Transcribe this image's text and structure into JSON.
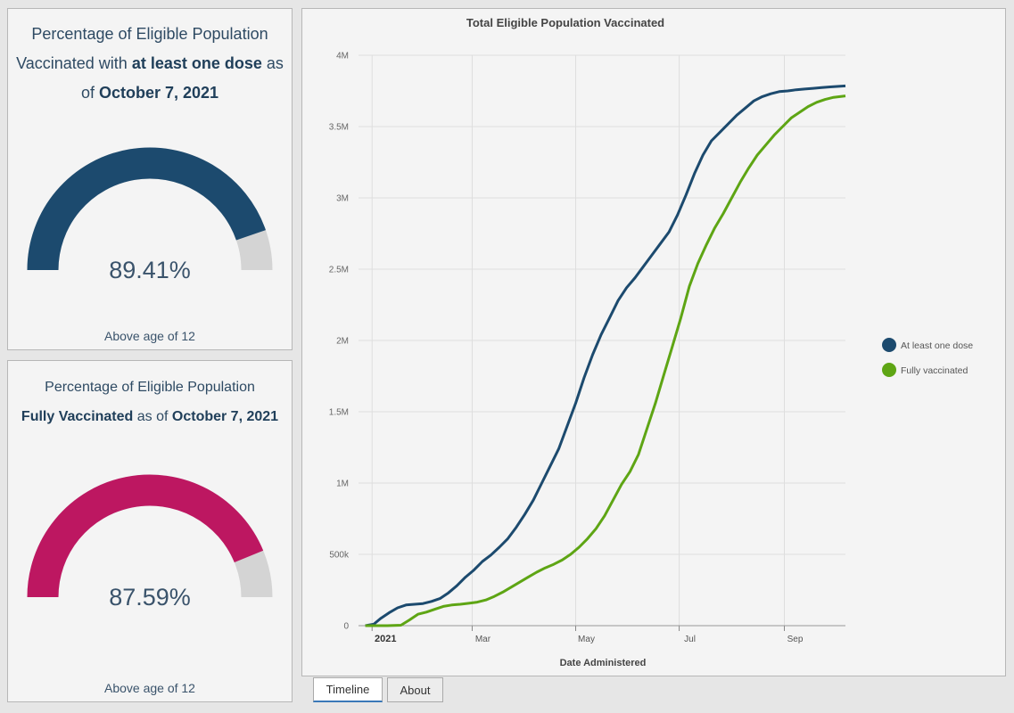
{
  "gauge1": {
    "title_part1": "Percentage of Eligible Population Vaccinated with ",
    "title_bold1": "at least one dose",
    "title_part2": " as of ",
    "title_bold2": "October 7, 2021",
    "value_text": "89.41%",
    "value": 89.41,
    "footer": "Above age of 12",
    "color": "#1c4a6e",
    "track_color": "#d4d4d4"
  },
  "gauge2": {
    "title_line1": "Percentage of Eligible Population",
    "title_bold1": "Fully Vaccinated",
    "title_part2": " as of ",
    "title_bold2": "October 7, 2021",
    "value_text": "87.59%",
    "value": 87.59,
    "footer": "Above age of 12",
    "color": "#bd1761",
    "track_color": "#d4d4d4"
  },
  "tabs": [
    {
      "label": "Timeline",
      "active": true
    },
    {
      "label": "About",
      "active": false
    }
  ],
  "chart_data": {
    "type": "line",
    "title": "Total Eligible Population Vaccinated",
    "xlabel": "Date Administered",
    "ylabel": "",
    "y_ticks": [
      {
        "value": 0,
        "label": "0"
      },
      {
        "value": 500000,
        "label": "500k"
      },
      {
        "value": 1000000,
        "label": "1M"
      },
      {
        "value": 1500000,
        "label": "1.5M"
      },
      {
        "value": 2000000,
        "label": "2M"
      },
      {
        "value": 2500000,
        "label": "2.5M"
      },
      {
        "value": 3000000,
        "label": "3M"
      },
      {
        "value": 3500000,
        "label": "3.5M"
      },
      {
        "value": 4000000,
        "label": "4M"
      }
    ],
    "x_ticks": [
      {
        "date": "2021-01-01",
        "label": "2021",
        "bold": true
      },
      {
        "date": "2021-03-01",
        "label": "Mar",
        "bold": false
      },
      {
        "date": "2021-05-01",
        "label": "May",
        "bold": false
      },
      {
        "date": "2021-07-01",
        "label": "Jul",
        "bold": false
      },
      {
        "date": "2021-09-01",
        "label": "Sep",
        "bold": false
      }
    ],
    "xlim": [
      "2020-12-24",
      "2021-10-07"
    ],
    "ylim": [
      0,
      4000000
    ],
    "grid": true,
    "legend_position": "right",
    "series": [
      {
        "name": "At least one dose",
        "color": "#1c4a6e",
        "points": [
          [
            "2020-12-28",
            0
          ],
          [
            "2021-01-02",
            10000
          ],
          [
            "2021-01-06",
            50000
          ],
          [
            "2021-01-11",
            90000
          ],
          [
            "2021-01-16",
            125000
          ],
          [
            "2021-01-21",
            145000
          ],
          [
            "2021-01-26",
            150000
          ],
          [
            "2021-01-31",
            155000
          ],
          [
            "2021-02-05",
            170000
          ],
          [
            "2021-02-10",
            190000
          ],
          [
            "2021-02-15",
            230000
          ],
          [
            "2021-02-20",
            280000
          ],
          [
            "2021-02-25",
            340000
          ],
          [
            "2021-03-02",
            390000
          ],
          [
            "2021-03-07",
            450000
          ],
          [
            "2021-03-12",
            495000
          ],
          [
            "2021-03-17",
            550000
          ],
          [
            "2021-03-22",
            610000
          ],
          [
            "2021-03-27",
            690000
          ],
          [
            "2021-04-01",
            780000
          ],
          [
            "2021-04-06",
            880000
          ],
          [
            "2021-04-11",
            1000000
          ],
          [
            "2021-04-16",
            1120000
          ],
          [
            "2021-04-21",
            1240000
          ],
          [
            "2021-04-26",
            1400000
          ],
          [
            "2021-05-01",
            1560000
          ],
          [
            "2021-05-06",
            1740000
          ],
          [
            "2021-05-11",
            1900000
          ],
          [
            "2021-05-16",
            2040000
          ],
          [
            "2021-05-21",
            2160000
          ],
          [
            "2021-05-26",
            2280000
          ],
          [
            "2021-05-31",
            2370000
          ],
          [
            "2021-06-05",
            2440000
          ],
          [
            "2021-06-10",
            2520000
          ],
          [
            "2021-06-15",
            2600000
          ],
          [
            "2021-06-20",
            2680000
          ],
          [
            "2021-06-25",
            2760000
          ],
          [
            "2021-06-30",
            2880000
          ],
          [
            "2021-07-05",
            3020000
          ],
          [
            "2021-07-10",
            3170000
          ],
          [
            "2021-07-15",
            3300000
          ],
          [
            "2021-07-20",
            3400000
          ],
          [
            "2021-07-25",
            3460000
          ],
          [
            "2021-07-30",
            3520000
          ],
          [
            "2021-08-04",
            3580000
          ],
          [
            "2021-08-09",
            3630000
          ],
          [
            "2021-08-14",
            3680000
          ],
          [
            "2021-08-19",
            3710000
          ],
          [
            "2021-08-24",
            3730000
          ],
          [
            "2021-08-29",
            3745000
          ],
          [
            "2021-09-03",
            3750000
          ],
          [
            "2021-09-08",
            3758000
          ],
          [
            "2021-09-13",
            3763000
          ],
          [
            "2021-09-18",
            3768000
          ],
          [
            "2021-09-23",
            3773000
          ],
          [
            "2021-09-28",
            3778000
          ],
          [
            "2021-10-03",
            3782000
          ],
          [
            "2021-10-07",
            3785000
          ]
        ]
      },
      {
        "name": "Fully vaccinated",
        "color": "#5ea514",
        "points": [
          [
            "2020-12-28",
            0
          ],
          [
            "2021-01-10",
            0
          ],
          [
            "2021-01-18",
            3000
          ],
          [
            "2021-01-23",
            40000
          ],
          [
            "2021-01-28",
            80000
          ],
          [
            "2021-02-02",
            95000
          ],
          [
            "2021-02-07",
            115000
          ],
          [
            "2021-02-12",
            135000
          ],
          [
            "2021-02-17",
            145000
          ],
          [
            "2021-02-22",
            150000
          ],
          [
            "2021-02-27",
            157000
          ],
          [
            "2021-03-04",
            165000
          ],
          [
            "2021-03-09",
            180000
          ],
          [
            "2021-03-14",
            205000
          ],
          [
            "2021-03-19",
            235000
          ],
          [
            "2021-03-24",
            270000
          ],
          [
            "2021-03-29",
            305000
          ],
          [
            "2021-04-03",
            340000
          ],
          [
            "2021-04-08",
            375000
          ],
          [
            "2021-04-13",
            405000
          ],
          [
            "2021-04-18",
            430000
          ],
          [
            "2021-04-23",
            460000
          ],
          [
            "2021-04-28",
            500000
          ],
          [
            "2021-05-03",
            550000
          ],
          [
            "2021-05-08",
            610000
          ],
          [
            "2021-05-13",
            680000
          ],
          [
            "2021-05-18",
            770000
          ],
          [
            "2021-05-23",
            880000
          ],
          [
            "2021-05-28",
            990000
          ],
          [
            "2021-06-02",
            1080000
          ],
          [
            "2021-06-07",
            1200000
          ],
          [
            "2021-06-12",
            1380000
          ],
          [
            "2021-06-17",
            1560000
          ],
          [
            "2021-06-22",
            1760000
          ],
          [
            "2021-06-27",
            1960000
          ],
          [
            "2021-07-02",
            2160000
          ],
          [
            "2021-07-07",
            2380000
          ],
          [
            "2021-07-12",
            2540000
          ],
          [
            "2021-07-17",
            2670000
          ],
          [
            "2021-07-22",
            2790000
          ],
          [
            "2021-07-27",
            2890000
          ],
          [
            "2021-08-01",
            3000000
          ],
          [
            "2021-08-06",
            3110000
          ],
          [
            "2021-08-11",
            3210000
          ],
          [
            "2021-08-16",
            3300000
          ],
          [
            "2021-08-21",
            3370000
          ],
          [
            "2021-08-26",
            3440000
          ],
          [
            "2021-08-31",
            3500000
          ],
          [
            "2021-09-05",
            3560000
          ],
          [
            "2021-09-10",
            3600000
          ],
          [
            "2021-09-15",
            3640000
          ],
          [
            "2021-09-20",
            3670000
          ],
          [
            "2021-09-25",
            3690000
          ],
          [
            "2021-09-30",
            3705000
          ],
          [
            "2021-10-07",
            3715000
          ]
        ]
      }
    ]
  }
}
